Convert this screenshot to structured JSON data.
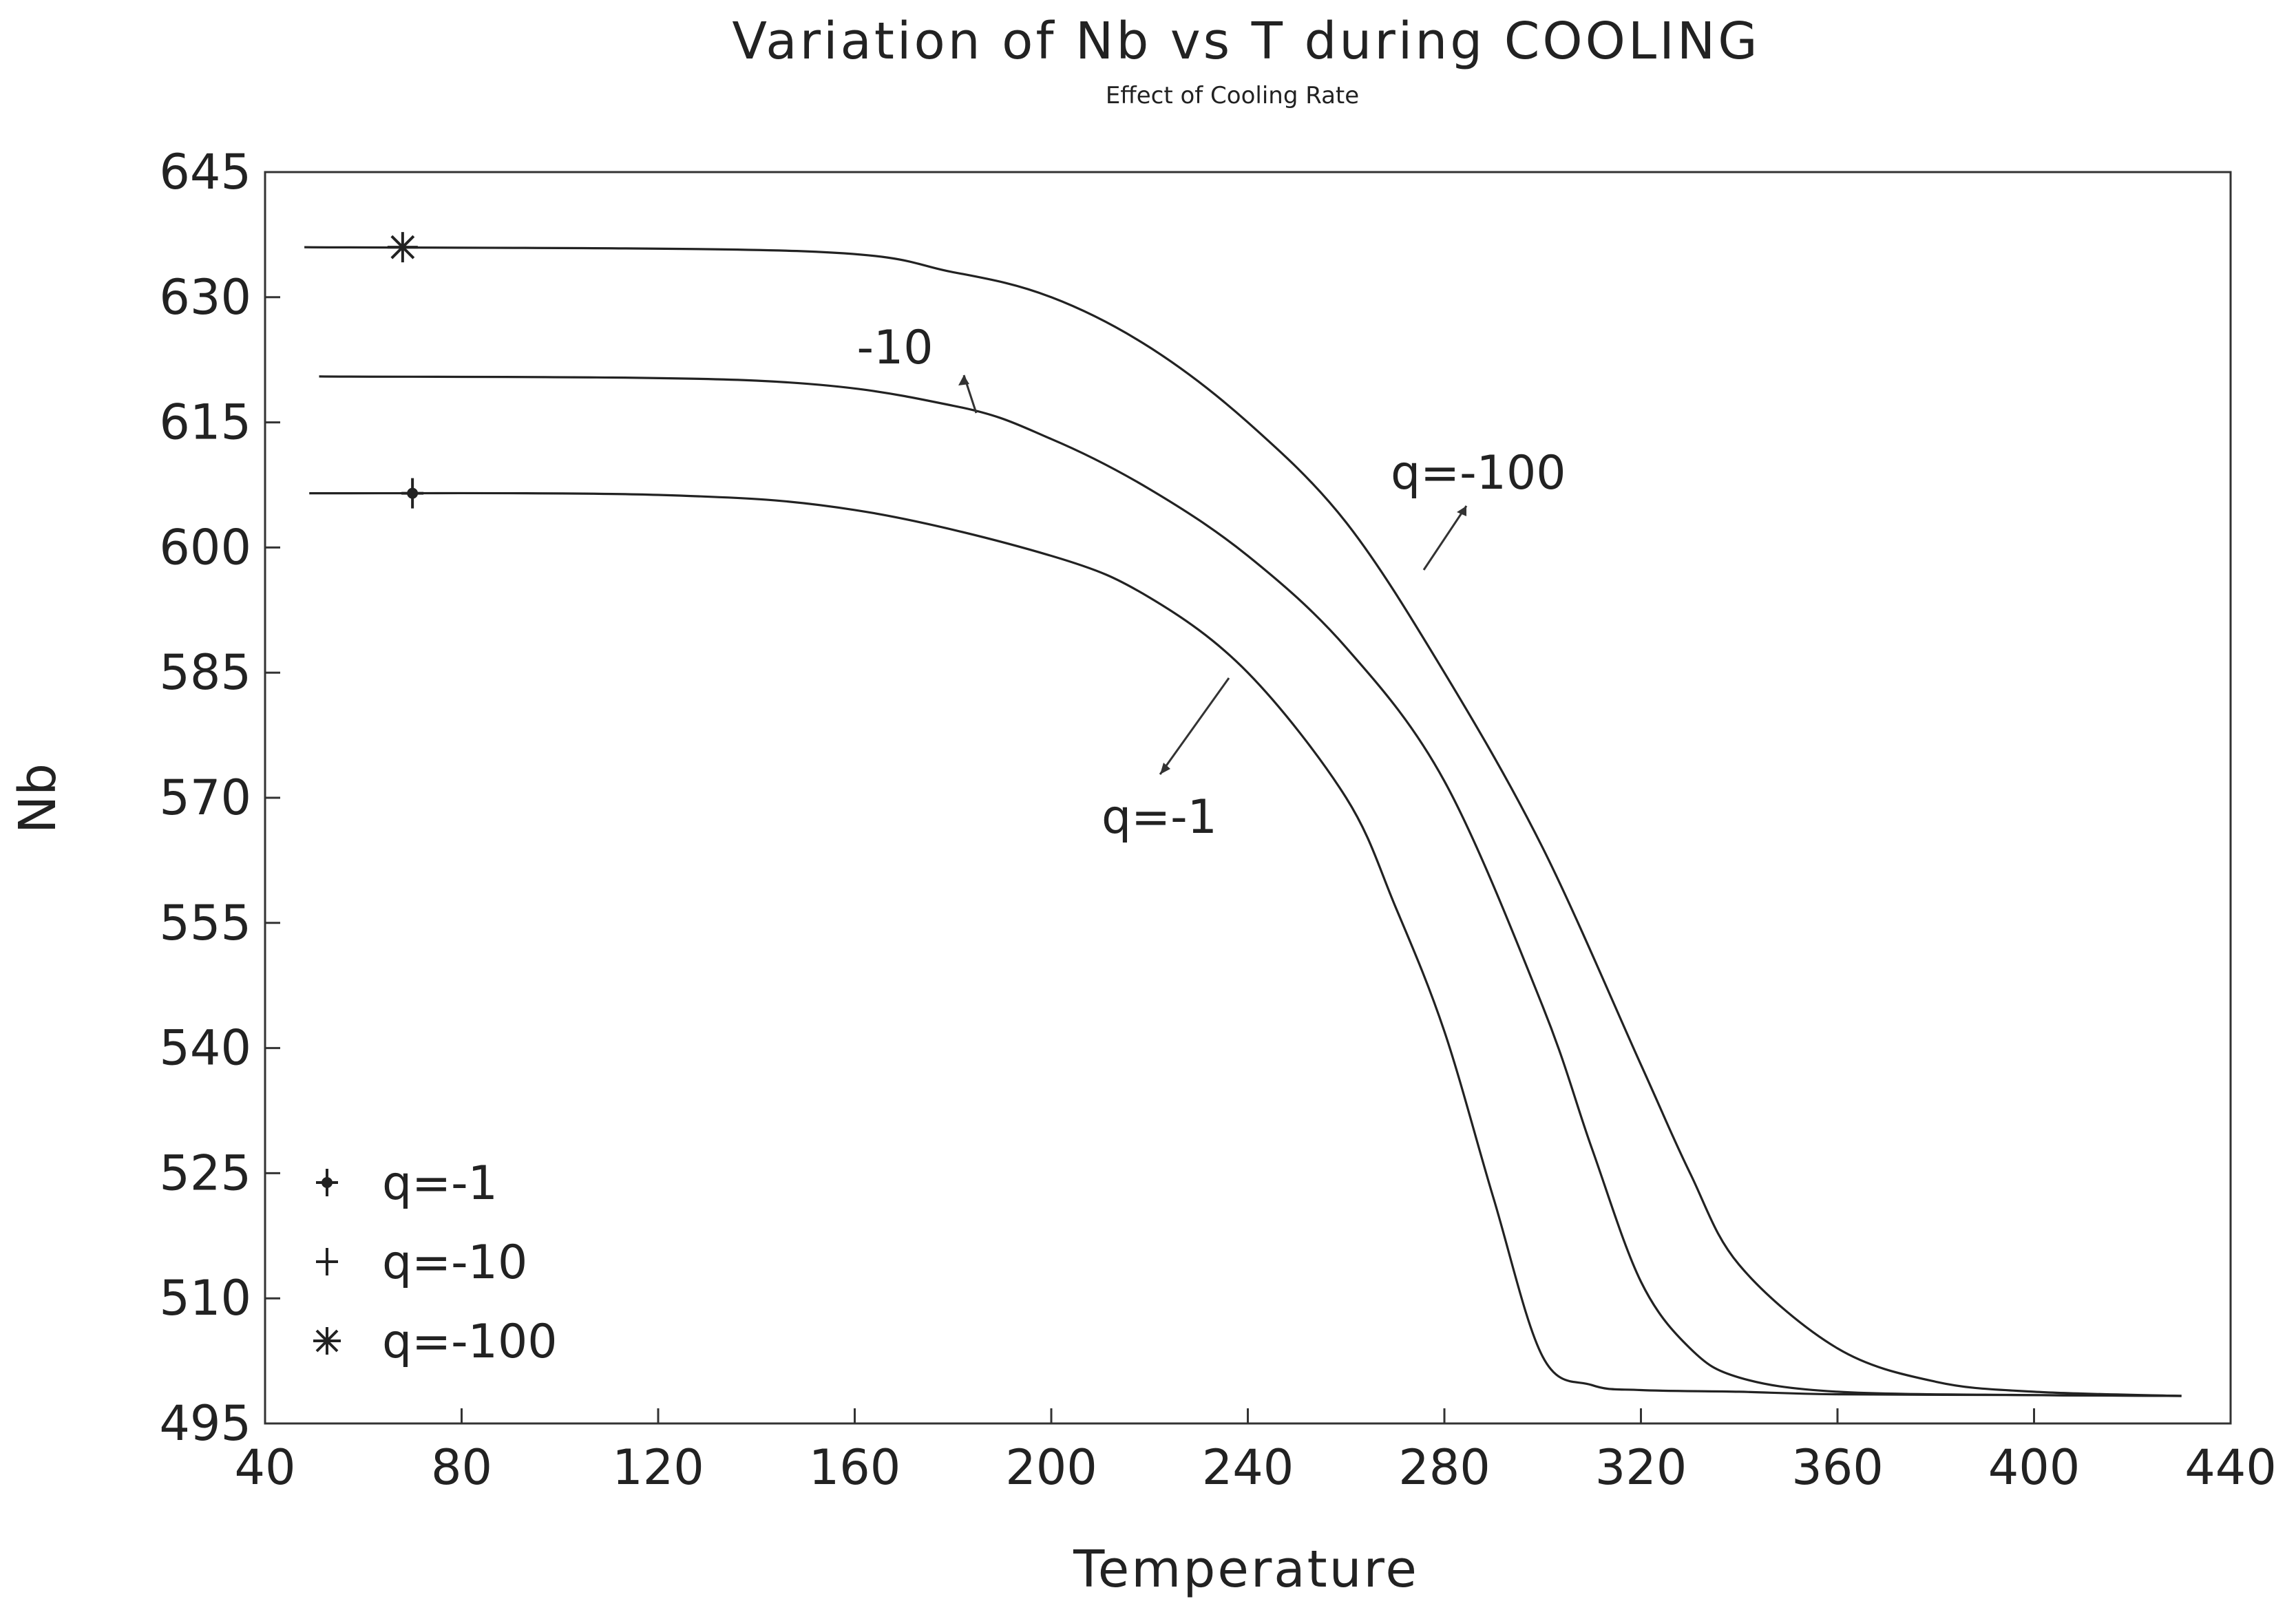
{
  "chart_data": {
    "type": "line",
    "title": "Variation of Nb vs T  during COOLING",
    "subtitle": "Effect of Cooling Rate",
    "xlabel": "Temperature",
    "ylabel": "Nb",
    "xlim": [
      40,
      440
    ],
    "ylim": [
      495,
      645
    ],
    "xticks": [
      40,
      80,
      120,
      160,
      200,
      240,
      280,
      320,
      360,
      400,
      440
    ],
    "yticks": [
      495,
      510,
      525,
      540,
      555,
      570,
      585,
      600,
      615,
      630,
      645
    ],
    "grid": false,
    "legend_position": "bottom-left",
    "series": [
      {
        "name": "q=-1",
        "marker": "filled-cross",
        "x": [
          49,
          120,
          160,
          200,
          220,
          240,
          260,
          270,
          280,
          290,
          300,
          310,
          320,
          340,
          360,
          400,
          430
        ],
        "y": [
          606.5,
          606.3,
          604.5,
          599,
          594,
          585,
          570,
          557,
          542,
          522,
          503,
          499.6,
          499,
          498.8,
          498.5,
          498.4,
          498.3
        ]
      },
      {
        "name": "q=-10",
        "marker": "plus",
        "x": [
          51,
          140,
          180,
          200,
          220,
          240,
          260,
          280,
          300,
          310,
          320,
          330,
          340,
          360,
          400,
          430
        ],
        "y": [
          620.5,
          620,
          617,
          613,
          607,
          599,
          588,
          572,
          545,
          528,
          512,
          504,
          500.5,
          498.8,
          498.4,
          498.3
        ]
      },
      {
        "name": "q=-100",
        "marker": "asterisk",
        "x": [
          48,
          150,
          180,
          200,
          220,
          240,
          260,
          280,
          300,
          320,
          330,
          340,
          360,
          380,
          400,
          430
        ],
        "y": [
          636,
          635.5,
          633,
          630,
          624,
          615,
          603,
          585,
          564,
          538,
          525,
          514,
          504,
          500,
          498.8,
          498.3
        ]
      }
    ],
    "annotations": [
      "-10",
      "q=-100",
      "q=-1"
    ]
  }
}
